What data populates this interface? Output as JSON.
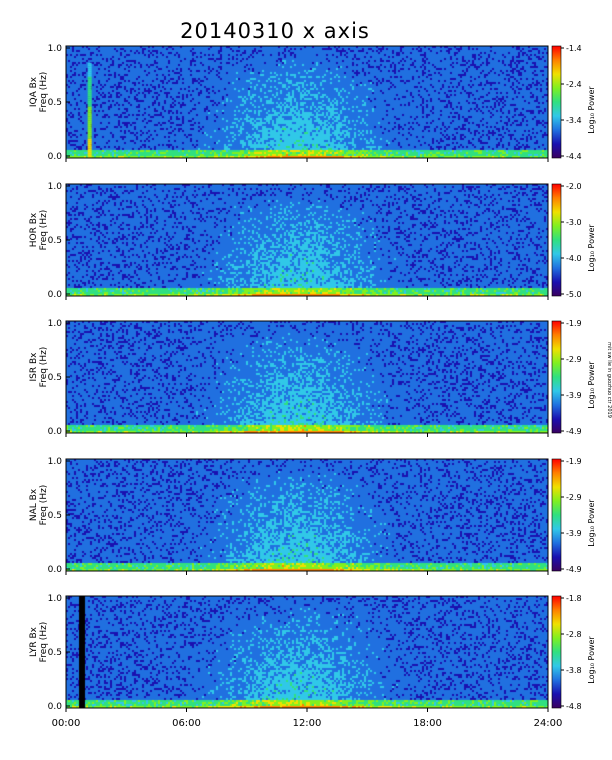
{
  "title": "20140310 x axis",
  "side_note": "mit sw lie in guozhuo ctr 2019",
  "chart_data": [
    {
      "type": "heatmap",
      "station": "IQA Bx",
      "ylabel": "Freq (Hz)",
      "yticks": [
        "1.0",
        "0.5",
        "0.0"
      ],
      "ylim": [
        0,
        1
      ],
      "colorbar_label": "Log₁₀ Power",
      "colorbar_ticks": [
        "-1.4",
        "-2.4",
        "-3.4",
        "-4.4"
      ],
      "colorbar_range": [
        -4.4,
        -1.4
      ]
    },
    {
      "type": "heatmap",
      "station": "HOR Bx",
      "ylabel": "Freq (Hz)",
      "yticks": [
        "1.0",
        "0.5",
        "0.0"
      ],
      "ylim": [
        0,
        1
      ],
      "colorbar_label": "Log₁₀ Power",
      "colorbar_ticks": [
        "-2.0",
        "-3.0",
        "-4.0",
        "-5.0"
      ],
      "colorbar_range": [
        -5.0,
        -2.0
      ]
    },
    {
      "type": "heatmap",
      "station": "ISR Bx",
      "ylabel": "Freq (Hz)",
      "yticks": [
        "1.0",
        "0.5",
        "0.0"
      ],
      "ylim": [
        0,
        1
      ],
      "colorbar_label": "Log₁₀ Power",
      "colorbar_ticks": [
        "-1.9",
        "-2.9",
        "-3.9",
        "-4.9"
      ],
      "colorbar_range": [
        -4.9,
        -1.9
      ]
    },
    {
      "type": "heatmap",
      "station": "NAL Bx",
      "ylabel": "Freq (Hz)",
      "yticks": [
        "1.0",
        "0.5",
        "0.0"
      ],
      "ylim": [
        0,
        1
      ],
      "colorbar_label": "Log₁₀ Power",
      "colorbar_ticks": [
        "-1.9",
        "-2.9",
        "-3.9",
        "-4.9"
      ],
      "colorbar_range": [
        -4.9,
        -1.9
      ]
    },
    {
      "type": "heatmap",
      "station": "LYR Bx",
      "ylabel": "Freq (Hz)",
      "yticks": [
        "1.0",
        "0.5",
        "0.0"
      ],
      "ylim": [
        0,
        1
      ],
      "colorbar_label": "Log₁₀ Power",
      "colorbar_ticks": [
        "-1.8",
        "-2.8",
        "-3.8",
        "-4.8"
      ],
      "colorbar_range": [
        -4.8,
        -1.8
      ]
    }
  ],
  "xaxis": {
    "ticks": [
      "00:00",
      "06:00",
      "12:00",
      "18:00",
      "24:00"
    ],
    "xlim_hours": [
      0,
      24
    ]
  },
  "colormap": [
    "#3a0060",
    "#1a10b0",
    "#2070e0",
    "#30c8e8",
    "#30e080",
    "#80f020",
    "#f0e000",
    "#ff8000",
    "#ff0000"
  ]
}
